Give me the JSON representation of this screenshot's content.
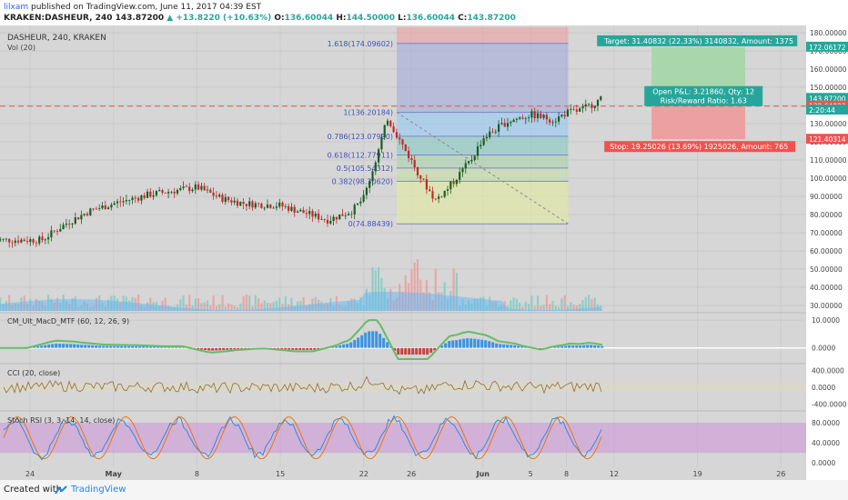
{
  "header": {
    "author": "lilxam",
    "published_text": "published on TradingView.com, June 11, 2017 04:39 EST",
    "symbol": "KRAKEN:DASHEUR, 240",
    "last": "143.87200",
    "change": "+13.8220 (+10.63%)",
    "o_label": "O:",
    "o_value": "136.60044",
    "h_label": "H:",
    "h_value": "144.50000",
    "l_label": "L:",
    "l_value": "136.60044",
    "c_label": "C:",
    "c_value": "143.87200"
  },
  "panes": {
    "main_title": "DASHEUR, 240, KRAKEN",
    "vol_label": "Vol (20)",
    "macd_label": "CM_Ult_MacD_MTF (60, 12, 26, 9)",
    "cci_label": "CCI (20, close)",
    "stoch_label": "Stoch RSI (3, 3, 14, 14, close)"
  },
  "footer": {
    "created_with": "Created with",
    "brand": "TradingView"
  },
  "colors": {
    "bull": "#26a69a",
    "bear": "#ef5350",
    "candle_up": "#1b5e20",
    "candle_down": "#c62828",
    "pane_bg": "#d9d9d9",
    "target": "#26a69a",
    "stop": "#ef5350"
  },
  "chart_data": [
    {
      "type": "candlestick",
      "title": "DASHEUR, 240, KRAKEN",
      "x_ticks": [
        "24",
        "May",
        "8",
        "15",
        "22",
        "26",
        "Jun",
        "5",
        "8",
        "12",
        "19",
        "26"
      ],
      "y_ticks": [
        "180.00000",
        "170.00000",
        "160.00000",
        "150.00000",
        "140.00000",
        "130.00000",
        "120.00000",
        "110.00000",
        "100.00000",
        "90.00000",
        "80.00000",
        "70.00000",
        "60.00000",
        "50.00000",
        "40.00000",
        "30.00000"
      ],
      "ylim": [
        25,
        183
      ],
      "price_path": [
        [
          "Apr 21",
          66
        ],
        [
          "Apr 25",
          66
        ],
        [
          "Apr 27",
          75
        ],
        [
          "Apr 29",
          82
        ],
        [
          "May 1",
          86
        ],
        [
          "May 4",
          91
        ],
        [
          "May 6",
          93
        ],
        [
          "May 8",
          95
        ],
        [
          "May 10",
          89
        ],
        [
          "May 12",
          86
        ],
        [
          "May 15",
          85
        ],
        [
          "May 17",
          81
        ],
        [
          "May 19",
          77
        ],
        [
          "May 21",
          82
        ],
        [
          "May 22",
          89
        ],
        [
          "May 23",
          110
        ],
        [
          "May 24",
          133
        ],
        [
          "May 25",
          121
        ],
        [
          "May 27",
          98
        ],
        [
          "May 28",
          88
        ],
        [
          "May 29",
          94
        ],
        [
          "May 31",
          110
        ],
        [
          "Jun 1",
          122
        ],
        [
          "Jun 3",
          131
        ],
        [
          "Jun 5",
          135
        ],
        [
          "Jun 7",
          132
        ],
        [
          "Jun 8",
          136
        ],
        [
          "Jun 9",
          137
        ],
        [
          "Jun 10",
          140
        ],
        [
          "Jun 11",
          143.872
        ]
      ],
      "fibonacci": [
        {
          "label": "1.618(174.09602)",
          "value": 174.09602
        },
        {
          "label": "1(136.20184)",
          "value": 136.20184
        },
        {
          "label": "0.786(123.07990)",
          "value": 123.0799
        },
        {
          "label": "0.618(112.77911)",
          "value": 112.77911
        },
        {
          "label": "0.5(105.54312)",
          "value": 105.54312
        },
        {
          "label": "0.382(98.30620)",
          "value": 98.3062
        },
        {
          "label": "0(74.88439)",
          "value": 74.88439
        }
      ],
      "position": {
        "target_label": "Target: 31.40832 (22.33%) 3140832, Amount: 1375",
        "target_price": "172.06172",
        "target_value": 172.06172,
        "entry_price": "140.65340",
        "entry_value": 140.6534,
        "stop_label": "Stop: 19.25026 (13.69%) 1925026, Amount: 765",
        "stop_price": "121.40314",
        "stop_value": 121.40314,
        "pnl_label": "Open P&L: 3.21860, Qty: 12",
        "rr_label": "Risk/Reward Ratio: 1.63"
      },
      "price_labels": [
        {
          "text": "143.87200",
          "value": 143.872,
          "color": "#26a69a"
        },
        {
          "text": "139.64023",
          "value": 139.64023,
          "color": "#ef5350"
        },
        {
          "text": "2:20:44",
          "value": 137.5,
          "color": "#26a69a"
        }
      ],
      "volume_note": "Vol (20)"
    },
    {
      "type": "line",
      "title": "CM_Ult_MacD_MTF (60, 12, 26, 9)",
      "y_ticks": [
        "10.0000",
        "0.0000"
      ],
      "ylim": [
        -5,
        12
      ]
    },
    {
      "type": "line",
      "title": "CCI (20, close)",
      "y_ticks": [
        "400.0000",
        "0.0000",
        "-400.0000"
      ],
      "ylim": [
        -520,
        520
      ]
    },
    {
      "type": "line",
      "title": "Stoch RSI (3, 3, 14, 14, close)",
      "y_ticks": [
        "80.0000",
        "40.0000",
        "0.0000"
      ],
      "ylim": [
        -5,
        100
      ]
    }
  ]
}
